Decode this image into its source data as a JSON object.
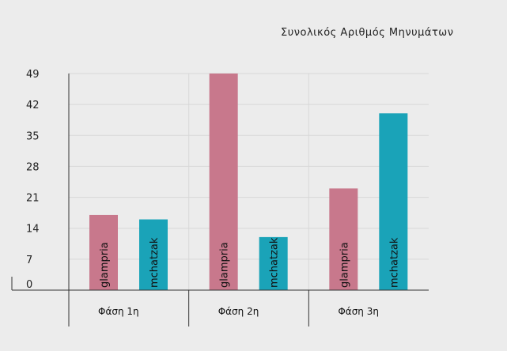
{
  "chart_data": {
    "type": "bar",
    "title": "Συνολικός Αριθμός Μηνυμάτων",
    "categories": [
      "Φάση 1η",
      "Φάση 2η",
      "Φάση 3η"
    ],
    "series": [
      {
        "name": "glampria",
        "values": [
          17,
          49,
          23
        ],
        "color": "#c8788c"
      },
      {
        "name": "mchatzak",
        "values": [
          16,
          12,
          40
        ],
        "color": "#1aa3b8"
      }
    ],
    "yticks": [
      0,
      7,
      14,
      21,
      28,
      35,
      42,
      49
    ],
    "ylim": [
      0,
      49
    ],
    "grid": true,
    "legend": "none"
  }
}
